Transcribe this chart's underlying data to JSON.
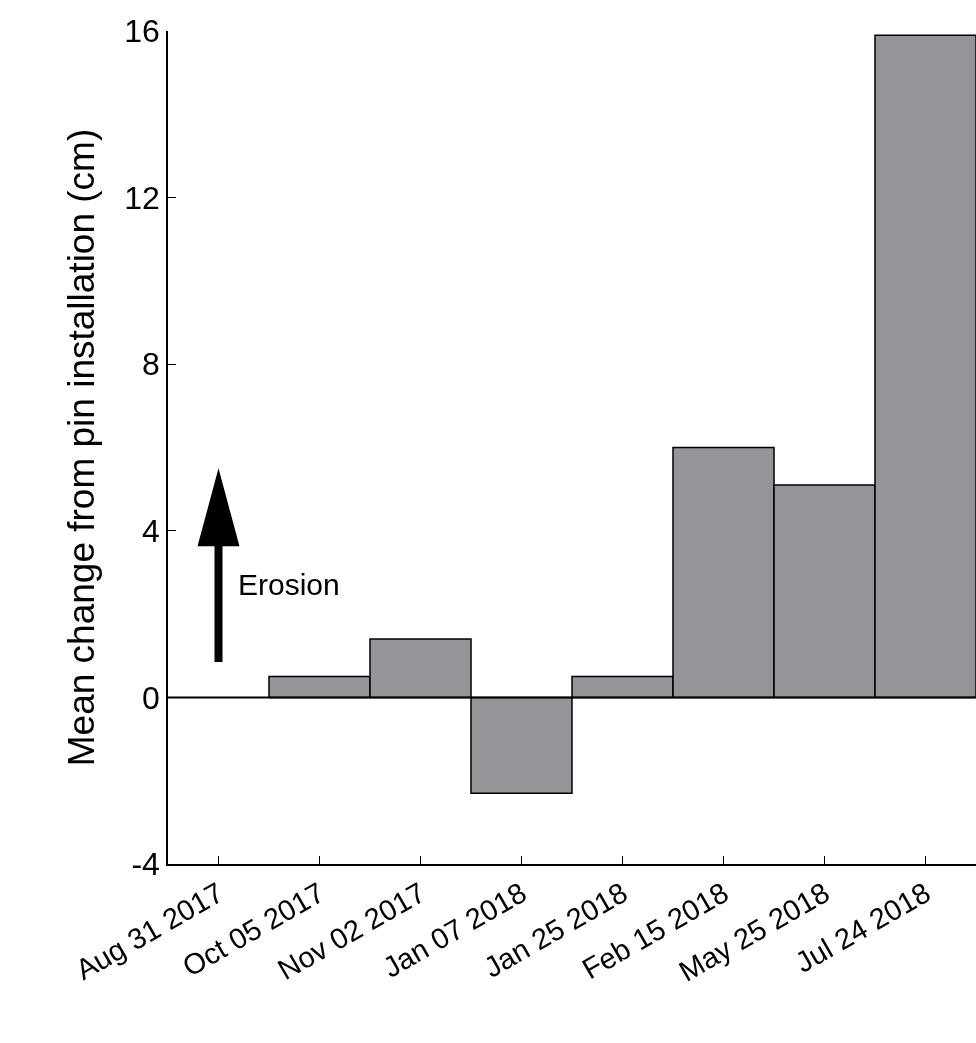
{
  "chart_data": {
    "type": "bar",
    "ylabel": "Mean change from pin installation (cm)",
    "categories": [
      "Aug 31 2017",
      "Oct 05 2017",
      "Nov 02 2017",
      "Jan 07 2018",
      "Jan 25 2018",
      "Feb 15 2018",
      "May 25 2018",
      "Jul 24 2018"
    ],
    "values": [
      null,
      0.5,
      1.4,
      -2.3,
      0.5,
      6.0,
      5.1,
      15.9
    ],
    "color": "#939598",
    "ylim": [
      -4,
      16
    ],
    "yticks": [
      -4,
      0,
      4,
      8,
      12,
      16
    ],
    "grid": false,
    "ref_lines": [
      {
        "axis": "y",
        "value": 0
      }
    ],
    "annotations": [
      "Erosion"
    ]
  }
}
